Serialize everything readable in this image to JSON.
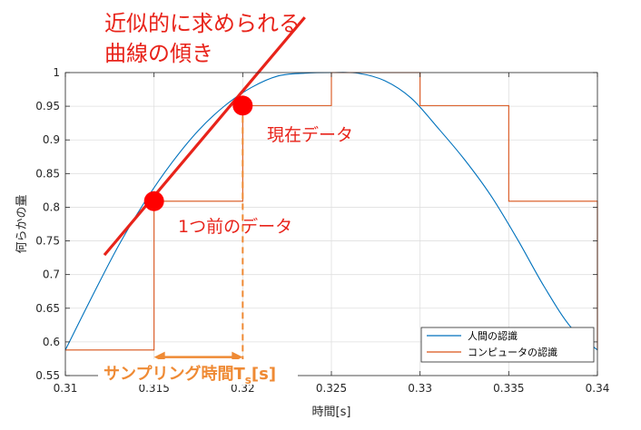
{
  "chart_data": {
    "type": "line",
    "xlabel": "時間[s]",
    "ylabel": "何らかの量",
    "xlim": [
      0.31,
      0.34
    ],
    "ylim": [
      0.55,
      1.0
    ],
    "xticks": [
      "0.31",
      "0.315",
      "0.32",
      "0.325",
      "0.33",
      "0.335",
      "0.34"
    ],
    "yticks": [
      "0.55",
      "0.6",
      "0.65",
      "0.7",
      "0.75",
      "0.8",
      "0.85",
      "0.9",
      "0.95",
      "1"
    ],
    "grid": true,
    "legend_position": "bottom-right",
    "series": [
      {
        "name": "人間の認識",
        "color": "#0072bd",
        "style": "smooth",
        "x": [
          0.31,
          0.3115,
          0.313,
          0.3145,
          0.316,
          0.3175,
          0.319,
          0.3205,
          0.322,
          0.3235,
          0.325,
          0.3265,
          0.328,
          0.3295,
          0.331,
          0.3325,
          0.334,
          0.3355,
          0.337,
          0.3385,
          0.34
        ],
        "y": [
          0.588,
          0.667,
          0.743,
          0.809,
          0.866,
          0.914,
          0.951,
          0.978,
          0.995,
          0.999,
          1.0,
          0.999,
          0.988,
          0.962,
          0.918,
          0.871,
          0.817,
          0.752,
          0.682,
          0.622,
          0.588
        ]
      },
      {
        "name": "コンピュータの認識",
        "color": "#d95319",
        "style": "stairs",
        "x": [
          0.31,
          0.315,
          0.32,
          0.325,
          0.33,
          0.335,
          0.34
        ],
        "y": [
          0.588,
          0.809,
          0.951,
          1.0,
          0.951,
          0.809,
          0.588
        ]
      }
    ],
    "annotations": {
      "slope_line_color": "#e8231a",
      "dot_color": "#ff0000",
      "slope_line": {
        "x1": 0.3122,
        "y1": 0.729,
        "x2": 0.3235,
        "y2": 1.082
      },
      "points": [
        {
          "x": 0.315,
          "y": 0.809,
          "label": "1つ前のデータ"
        },
        {
          "x": 0.32,
          "y": 0.951,
          "label": "現在データ"
        }
      ],
      "slope_title_line1": "近似的に求められる",
      "slope_title_line2": "曲線の傾き",
      "sampling_color": "#ef8a34",
      "sampling": {
        "x_start": 0.315,
        "x_end": 0.32,
        "y": 0.5775,
        "label": "サンプリング時間T",
        "label_sub": "s",
        "label_suffix": "[s]"
      }
    }
  }
}
